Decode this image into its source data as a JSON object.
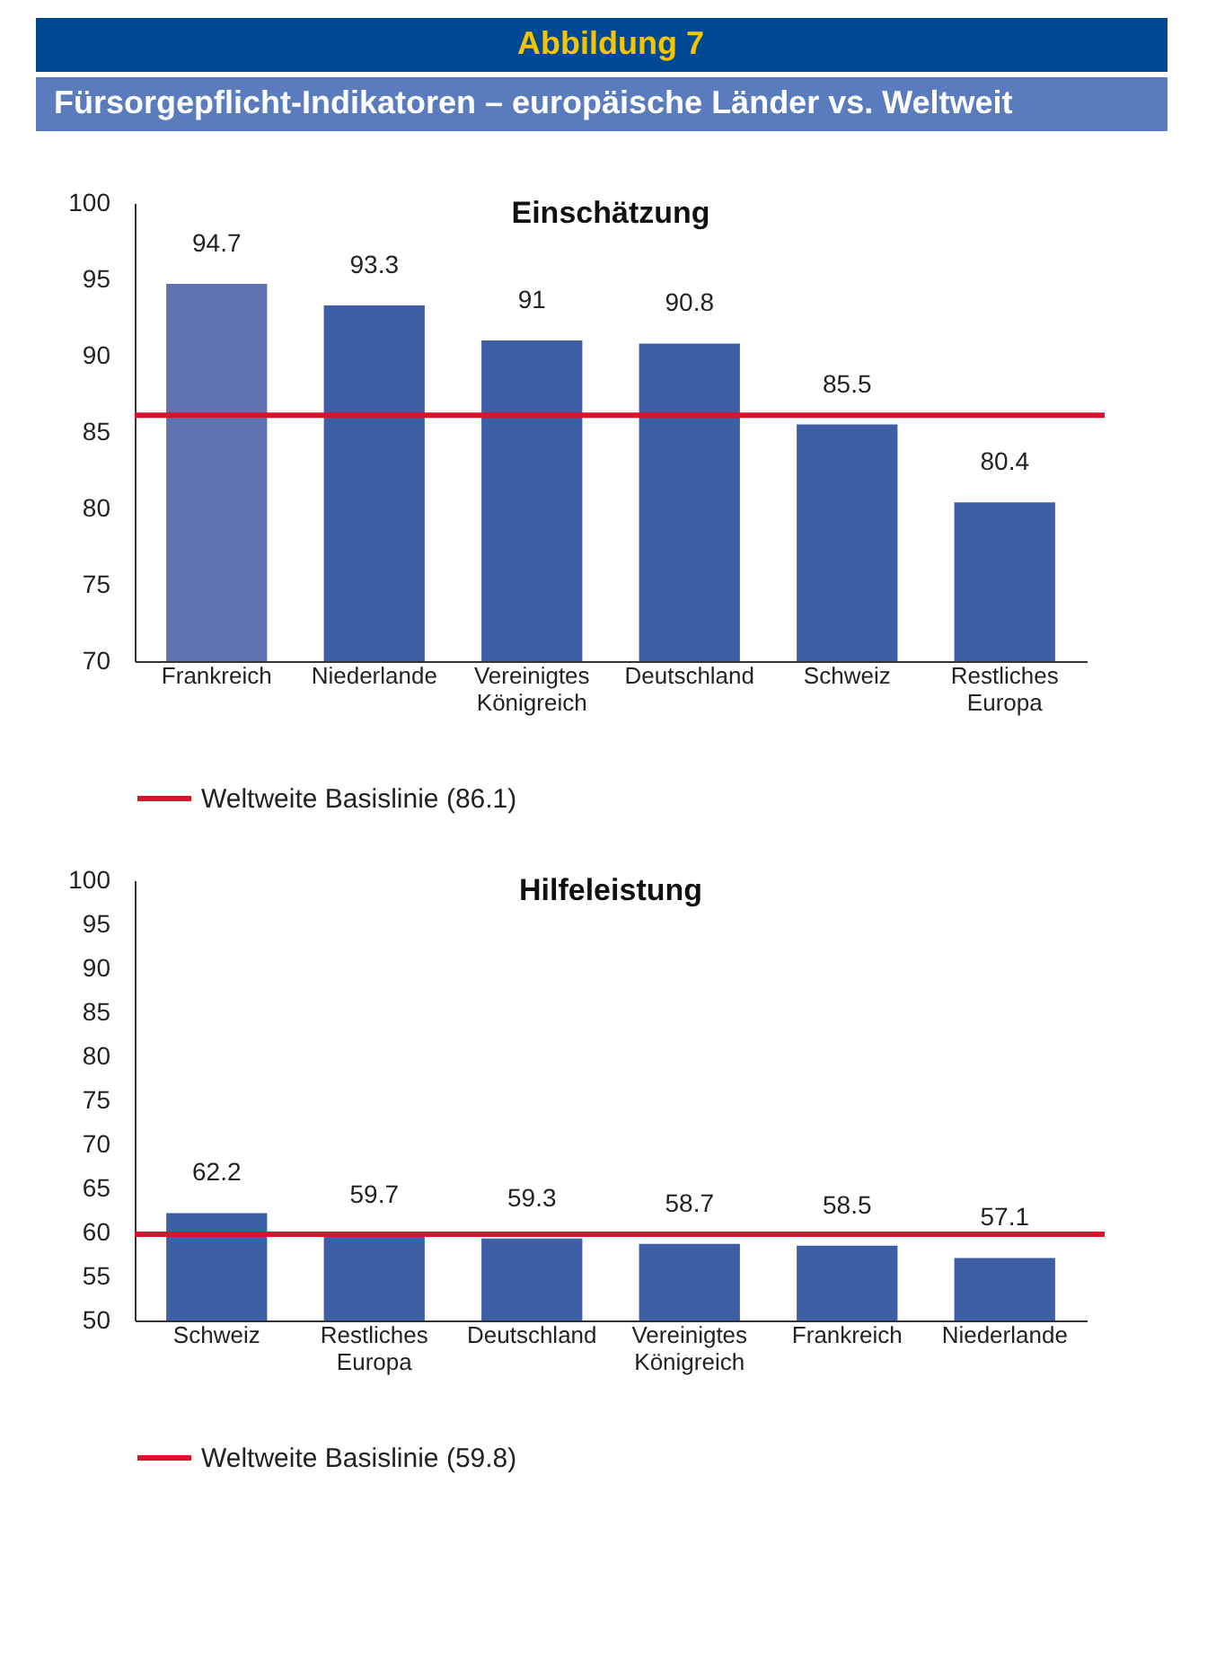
{
  "chart_data": [
    {
      "type": "bar",
      "title": "Einschätzung",
      "annotations": [
        "Abbildung 7",
        "Fürsorgepflicht-Indikatoren – europäische Länder vs. Weltweit"
      ],
      "categories": [
        "Frankreich",
        "Niederlande",
        "Vereinigtes Königreich",
        "Deutschland",
        "Schweiz",
        "Restliches Europa"
      ],
      "values": [
        94.7,
        93.3,
        91,
        90.8,
        85.5,
        80.4
      ],
      "colors": [
        "#6172b0",
        "#3f5fa5",
        "#3f5fa5",
        "#3f5fa5",
        "#3f5fa5",
        "#3f5fa5"
      ],
      "ylim": [
        70,
        100
      ],
      "yticks": [
        70,
        75,
        80,
        85,
        90,
        95,
        100
      ],
      "grid": false,
      "data_labels": true,
      "legend": "bottom",
      "ref_lines": [
        {
          "axis": "y",
          "value": 86.1,
          "label": "Weltweite Basislinie (86.1)",
          "color": "#d7142b"
        }
      ]
    },
    {
      "type": "bar",
      "title": "Hilfeleistung",
      "categories": [
        "Schweiz",
        "Restliches Europa",
        "Deutschland",
        "Vereinigtes Königreich",
        "Frankreich",
        "Niederlande"
      ],
      "values": [
        62.2,
        59.7,
        59.3,
        58.7,
        58.5,
        57.1
      ],
      "colors": [
        "#3f5fa5",
        "#3f5fa5",
        "#3f5fa5",
        "#3f5fa5",
        "#3f5fa5",
        "#3f5fa5"
      ],
      "ylim": [
        50,
        100
      ],
      "yticks": [
        50,
        55,
        60,
        65,
        70,
        75,
        80,
        85,
        90,
        95,
        100
      ],
      "grid": false,
      "data_labels": true,
      "legend": "bottom",
      "ref_lines": [
        {
          "axis": "y",
          "value": 59.8,
          "label": "Weltweite Basislinie (59.8)",
          "color": "#d7142b"
        }
      ]
    }
  ]
}
